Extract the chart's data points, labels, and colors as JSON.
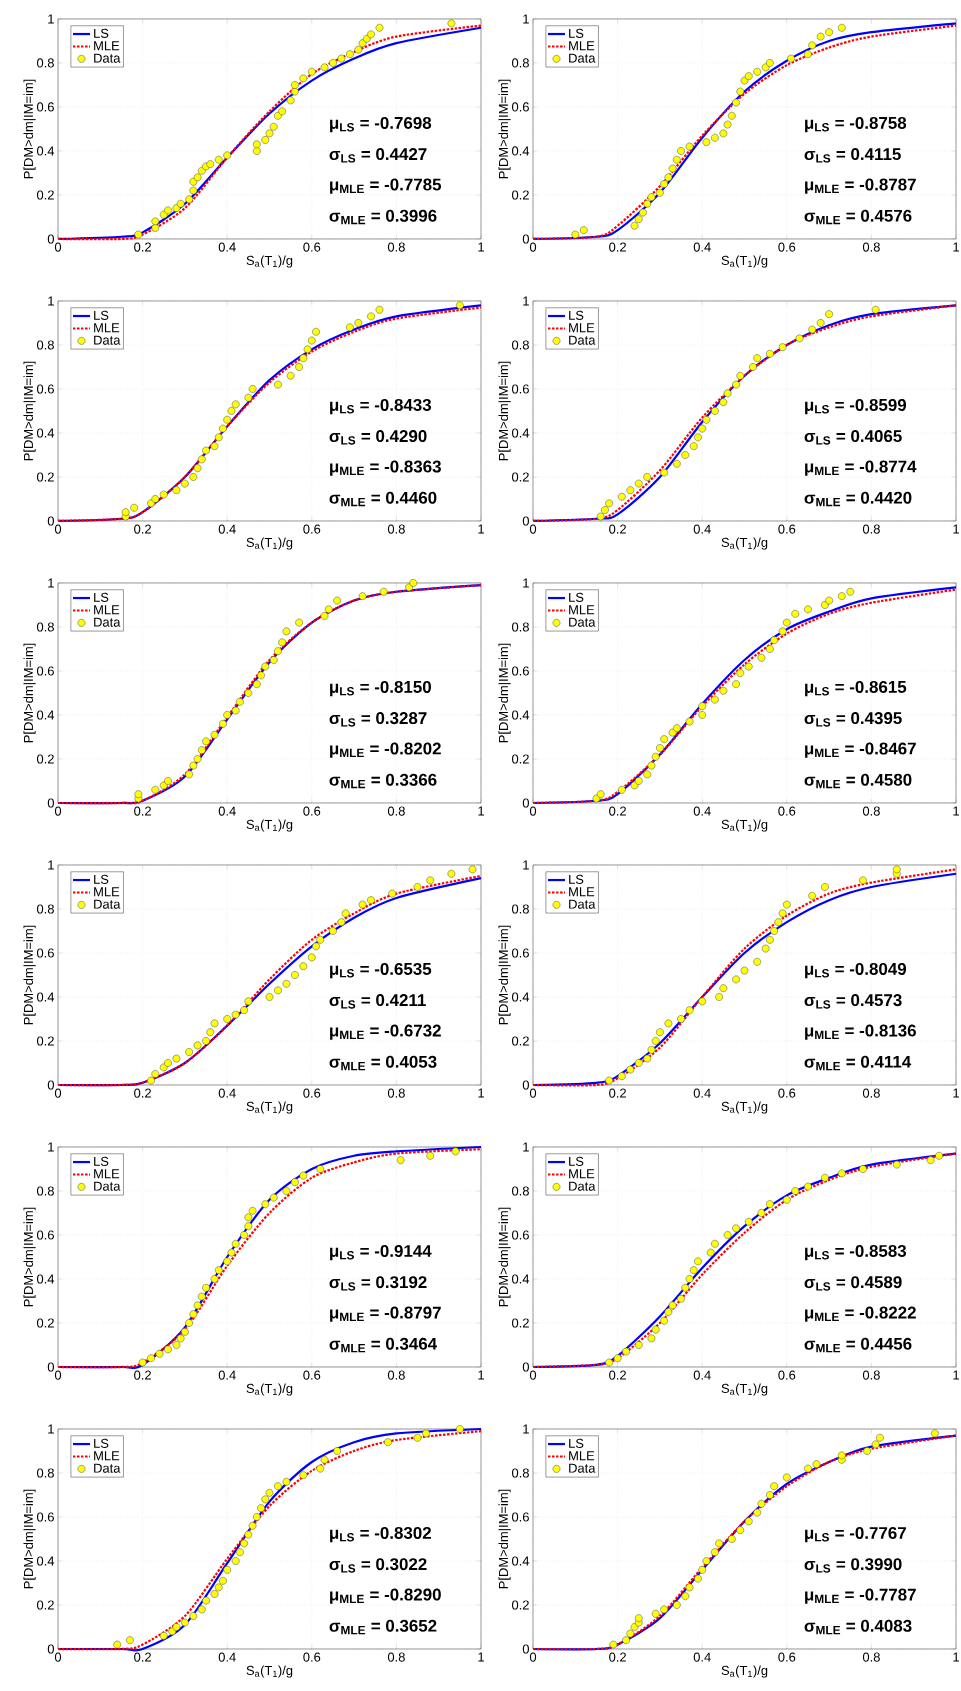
{
  "chart_data": [
    {
      "type": "line",
      "xlabel": "S$_{a}$(T$_{1}$)/g",
      "ylabel": "P[DM>dm|IM=im]",
      "x": [
        0,
        0.15,
        0.2,
        0.3,
        0.4,
        0.5,
        0.6,
        0.7,
        0.8,
        1
      ],
      "xlim": [
        0,
        1
      ],
      "ylim": [
        0,
        1
      ],
      "xticks": [
        0,
        0.2,
        0.4,
        0.6,
        0.8,
        1
      ],
      "yticks": [
        0,
        0.2,
        0.4,
        0.6,
        0.8,
        1
      ],
      "grid": true,
      "legend": "top left",
      "annotations": [
        "μ$_{LS}$ = -0.7698",
        "σ$_{LS}$ = 0.4427",
        "μ$_{MLE}$ = -0.7785",
        "σ$_{MLE}$ = 0.3996"
      ],
      "series": [
        {
          "name": "LS",
          "type": "line",
          "color": "#0000ff",
          "line_style": "solid",
          "values": [
            0,
            0.01,
            0.03,
            0.16,
            0.37,
            0.57,
            0.72,
            0.82,
            0.89,
            0.96
          ]
        },
        {
          "name": "MLE",
          "type": "line",
          "color": "#ff0000",
          "line_style": "dotted",
          "values": [
            0,
            0,
            0.02,
            0.14,
            0.37,
            0.58,
            0.75,
            0.85,
            0.92,
            0.97
          ]
        },
        {
          "name": "Data",
          "type": "scatter",
          "color": "#ffff00",
          "marker": "circle",
          "x": [
            0.19,
            0.23,
            0.23,
            0.25,
            0.26,
            0.28,
            0.29,
            0.31,
            0.32,
            0.32,
            0.33,
            0.34,
            0.35,
            0.36,
            0.38,
            0.4,
            0.47,
            0.47,
            0.49,
            0.5,
            0.51,
            0.52,
            0.53,
            0.55,
            0.56,
            0.56,
            0.58,
            0.6,
            0.63,
            0.65,
            0.67,
            0.69,
            0.71,
            0.72,
            0.73,
            0.74,
            0.76,
            0.93
          ],
          "values": [
            0.02,
            0.05,
            0.08,
            0.11,
            0.13,
            0.14,
            0.16,
            0.18,
            0.22,
            0.26,
            0.28,
            0.31,
            0.33,
            0.34,
            0.36,
            0.38,
            0.4,
            0.43,
            0.45,
            0.48,
            0.51,
            0.56,
            0.58,
            0.63,
            0.67,
            0.7,
            0.73,
            0.76,
            0.78,
            0.8,
            0.82,
            0.84,
            0.86,
            0.89,
            0.91,
            0.93,
            0.96,
            0.98
          ]
        }
      ]
    },
    {
      "type": "line",
      "xlabel": "S$_{a}$(T$_{1}$)/g",
      "ylabel": "P[DM>dm|IM=im]",
      "x": [
        0,
        0.15,
        0.2,
        0.3,
        0.4,
        0.5,
        0.6,
        0.7,
        0.8,
        1
      ],
      "xlim": [
        0,
        1
      ],
      "ylim": [
        0,
        1
      ],
      "xticks": [
        0,
        0.2,
        0.4,
        0.6,
        0.8,
        1
      ],
      "yticks": [
        0,
        0.2,
        0.4,
        0.6,
        0.8,
        1
      ],
      "grid": true,
      "legend": "top left",
      "annotations": [
        "μ$_{LS}$ = -0.8758",
        "σ$_{LS}$ = 0.4115",
        "μ$_{MLE}$ = -0.8787",
        "σ$_{MLE}$ = 0.4576"
      ],
      "series": [
        {
          "name": "LS",
          "type": "line",
          "color": "#0000ff",
          "line_style": "solid",
          "values": [
            0,
            0.01,
            0.04,
            0.21,
            0.46,
            0.67,
            0.81,
            0.9,
            0.94,
            0.98
          ]
        },
        {
          "name": "MLE",
          "type": "line",
          "color": "#ff0000",
          "line_style": "dotted",
          "values": [
            0,
            0.01,
            0.06,
            0.24,
            0.47,
            0.66,
            0.79,
            0.87,
            0.92,
            0.97
          ]
        },
        {
          "name": "Data",
          "type": "scatter",
          "color": "#ffff00",
          "marker": "circle",
          "x": [
            0.1,
            0.12,
            0.24,
            0.25,
            0.26,
            0.27,
            0.28,
            0.3,
            0.31,
            0.32,
            0.33,
            0.34,
            0.35,
            0.37,
            0.41,
            0.43,
            0.45,
            0.46,
            0.47,
            0.48,
            0.49,
            0.5,
            0.51,
            0.53,
            0.55,
            0.56,
            0.61,
            0.65,
            0.66,
            0.68,
            0.7,
            0.73
          ],
          "values": [
            0.02,
            0.04,
            0.06,
            0.09,
            0.12,
            0.16,
            0.19,
            0.21,
            0.25,
            0.28,
            0.32,
            0.36,
            0.4,
            0.42,
            0.44,
            0.46,
            0.48,
            0.52,
            0.56,
            0.62,
            0.67,
            0.72,
            0.74,
            0.76,
            0.78,
            0.8,
            0.82,
            0.84,
            0.88,
            0.92,
            0.94,
            0.96
          ]
        }
      ]
    },
    {
      "type": "line",
      "xlabel": "S$_{a}$(T$_{1}$)/g",
      "ylabel": "P[DM>dm|IM=im]",
      "x": [
        0,
        0.15,
        0.2,
        0.3,
        0.4,
        0.5,
        0.6,
        0.7,
        0.8,
        1
      ],
      "xlim": [
        0,
        1
      ],
      "ylim": [
        0,
        1
      ],
      "xticks": [
        0,
        0.2,
        0.4,
        0.6,
        0.8,
        1
      ],
      "yticks": [
        0,
        0.2,
        0.4,
        0.6,
        0.8,
        1
      ],
      "grid": true,
      "legend": "top left",
      "annotations": [
        "μ$_{LS}$ = -0.8433",
        "σ$_{LS}$ = 0.4290",
        "μ$_{MLE}$ = -0.8363",
        "σ$_{MLE}$ = 0.4460"
      ],
      "series": [
        {
          "name": "LS",
          "type": "line",
          "color": "#0000ff",
          "line_style": "solid",
          "values": [
            0,
            0.01,
            0.04,
            0.2,
            0.43,
            0.64,
            0.78,
            0.87,
            0.93,
            0.98
          ]
        },
        {
          "name": "MLE",
          "type": "line",
          "color": "#ff0000",
          "line_style": "dotted",
          "values": [
            0,
            0.01,
            0.04,
            0.2,
            0.43,
            0.63,
            0.77,
            0.86,
            0.92,
            0.97
          ]
        },
        {
          "name": "Data",
          "type": "scatter",
          "color": "#ffff00",
          "marker": "circle",
          "x": [
            0.16,
            0.16,
            0.18,
            0.22,
            0.23,
            0.25,
            0.28,
            0.3,
            0.32,
            0.33,
            0.34,
            0.35,
            0.37,
            0.38,
            0.39,
            0.4,
            0.41,
            0.42,
            0.45,
            0.46,
            0.52,
            0.55,
            0.57,
            0.58,
            0.59,
            0.6,
            0.61,
            0.69,
            0.71,
            0.74,
            0.76,
            0.95
          ],
          "values": [
            0.02,
            0.04,
            0.06,
            0.08,
            0.1,
            0.12,
            0.14,
            0.17,
            0.2,
            0.24,
            0.28,
            0.32,
            0.34,
            0.38,
            0.42,
            0.46,
            0.5,
            0.53,
            0.56,
            0.6,
            0.62,
            0.66,
            0.7,
            0.74,
            0.78,
            0.82,
            0.86,
            0.88,
            0.9,
            0.93,
            0.96,
            0.98
          ]
        }
      ]
    },
    {
      "type": "line",
      "xlabel": "S$_{a}$(T$_{1}$)/g",
      "ylabel": "P[DM>dm|IM=im]",
      "x": [
        0,
        0.15,
        0.2,
        0.3,
        0.4,
        0.5,
        0.6,
        0.7,
        0.8,
        1
      ],
      "xlim": [
        0,
        1
      ],
      "ylim": [
        0,
        1
      ],
      "xticks": [
        0,
        0.2,
        0.4,
        0.6,
        0.8,
        1
      ],
      "yticks": [
        0,
        0.2,
        0.4,
        0.6,
        0.8,
        1
      ],
      "grid": true,
      "legend": "top left",
      "annotations": [
        "μ$_{LS}$ = -0.8599",
        "σ$_{LS}$ = 0.4065",
        "μ$_{MLE}$ = -0.8774",
        "σ$_{MLE}$ = 0.4420"
      ],
      "series": [
        {
          "name": "LS",
          "type": "line",
          "color": "#0000ff",
          "line_style": "solid",
          "values": [
            0,
            0.01,
            0.03,
            0.2,
            0.45,
            0.66,
            0.8,
            0.89,
            0.94,
            0.98
          ]
        },
        {
          "name": "MLE",
          "type": "line",
          "color": "#ff0000",
          "line_style": "dotted",
          "values": [
            0,
            0.01,
            0.05,
            0.23,
            0.47,
            0.66,
            0.8,
            0.88,
            0.93,
            0.98
          ]
        },
        {
          "name": "Data",
          "type": "scatter",
          "color": "#ffff00",
          "marker": "circle",
          "x": [
            0.16,
            0.17,
            0.18,
            0.21,
            0.23,
            0.25,
            0.27,
            0.31,
            0.34,
            0.36,
            0.38,
            0.39,
            0.4,
            0.41,
            0.43,
            0.45,
            0.46,
            0.48,
            0.49,
            0.52,
            0.53,
            0.56,
            0.59,
            0.63,
            0.66,
            0.68,
            0.7,
            0.81
          ],
          "values": [
            0.02,
            0.05,
            0.08,
            0.11,
            0.14,
            0.17,
            0.2,
            0.22,
            0.26,
            0.3,
            0.34,
            0.38,
            0.42,
            0.46,
            0.5,
            0.54,
            0.58,
            0.62,
            0.66,
            0.7,
            0.74,
            0.76,
            0.79,
            0.83,
            0.87,
            0.9,
            0.94,
            0.96
          ]
        }
      ]
    },
    {
      "type": "line",
      "xlabel": "S$_{a}$(T$_{1}$)/g",
      "ylabel": "P[DM>dm|IM=im]",
      "x": [
        0,
        0.15,
        0.2,
        0.3,
        0.4,
        0.5,
        0.6,
        0.7,
        0.8,
        1
      ],
      "xlim": [
        0,
        1
      ],
      "ylim": [
        0,
        1
      ],
      "xticks": [
        0,
        0.2,
        0.4,
        0.6,
        0.8,
        1
      ],
      "yticks": [
        0,
        0.2,
        0.4,
        0.6,
        0.8,
        1
      ],
      "grid": true,
      "legend": "top left",
      "annotations": [
        "μ$_{LS}$ = -0.8150",
        "σ$_{LS}$ = 0.3287",
        "μ$_{MLE}$ = -0.8202",
        "σ$_{MLE}$ = 0.3366"
      ],
      "series": [
        {
          "name": "LS",
          "type": "line",
          "color": "#0000ff",
          "line_style": "solid",
          "values": [
            0,
            0,
            0.01,
            0.12,
            0.38,
            0.64,
            0.82,
            0.92,
            0.96,
            0.99
          ]
        },
        {
          "name": "MLE",
          "type": "line",
          "color": "#ff0000",
          "line_style": "dotted",
          "values": [
            0,
            0,
            0.01,
            0.13,
            0.39,
            0.65,
            0.82,
            0.92,
            0.96,
            0.99
          ]
        },
        {
          "name": "Data",
          "type": "scatter",
          "color": "#ffff00",
          "marker": "circle",
          "x": [
            0.19,
            0.19,
            0.23,
            0.25,
            0.26,
            0.31,
            0.32,
            0.33,
            0.34,
            0.35,
            0.37,
            0.39,
            0.4,
            0.42,
            0.43,
            0.45,
            0.47,
            0.48,
            0.49,
            0.51,
            0.52,
            0.53,
            0.54,
            0.57,
            0.63,
            0.64,
            0.66,
            0.72,
            0.77,
            0.83,
            0.84
          ],
          "values": [
            0.02,
            0.04,
            0.06,
            0.08,
            0.1,
            0.13,
            0.17,
            0.2,
            0.24,
            0.28,
            0.31,
            0.36,
            0.4,
            0.42,
            0.46,
            0.5,
            0.54,
            0.58,
            0.62,
            0.65,
            0.69,
            0.73,
            0.78,
            0.82,
            0.85,
            0.88,
            0.92,
            0.94,
            0.96,
            0.98,
            1.0
          ]
        }
      ]
    },
    {
      "type": "line",
      "xlabel": "S$_{a}$(T$_{1}$)/g",
      "ylabel": "P[DM>dm|IM=im]",
      "x": [
        0,
        0.15,
        0.2,
        0.3,
        0.4,
        0.5,
        0.6,
        0.7,
        0.8,
        1
      ],
      "xlim": [
        0,
        1
      ],
      "ylim": [
        0,
        1
      ],
      "xticks": [
        0,
        0.2,
        0.4,
        0.6,
        0.8,
        1
      ],
      "yticks": [
        0,
        0.2,
        0.4,
        0.6,
        0.8,
        1
      ],
      "grid": true,
      "legend": "top left",
      "annotations": [
        "μ$_{LS}$ = -0.8615",
        "σ$_{LS}$ = 0.4395",
        "μ$_{MLE}$ = -0.8467",
        "σ$_{MLE}$ = 0.4580"
      ],
      "series": [
        {
          "name": "LS",
          "type": "line",
          "color": "#0000ff",
          "line_style": "solid",
          "values": [
            0,
            0.01,
            0.04,
            0.22,
            0.45,
            0.65,
            0.79,
            0.87,
            0.93,
            0.98
          ]
        },
        {
          "name": "MLE",
          "type": "line",
          "color": "#ff0000",
          "line_style": "dotted",
          "values": [
            0,
            0.01,
            0.05,
            0.22,
            0.44,
            0.63,
            0.77,
            0.86,
            0.91,
            0.97
          ]
        },
        {
          "name": "Data",
          "type": "scatter",
          "color": "#ffff00",
          "marker": "circle",
          "x": [
            0.15,
            0.16,
            0.21,
            0.24,
            0.25,
            0.27,
            0.28,
            0.29,
            0.3,
            0.31,
            0.33,
            0.34,
            0.37,
            0.4,
            0.4,
            0.43,
            0.45,
            0.48,
            0.49,
            0.51,
            0.54,
            0.56,
            0.57,
            0.59,
            0.6,
            0.62,
            0.65,
            0.69,
            0.7,
            0.73,
            0.75
          ],
          "values": [
            0.02,
            0.04,
            0.06,
            0.08,
            0.1,
            0.13,
            0.17,
            0.21,
            0.25,
            0.29,
            0.32,
            0.34,
            0.37,
            0.4,
            0.44,
            0.47,
            0.51,
            0.54,
            0.59,
            0.62,
            0.66,
            0.7,
            0.74,
            0.78,
            0.82,
            0.86,
            0.88,
            0.9,
            0.92,
            0.94,
            0.96
          ]
        }
      ]
    },
    {
      "type": "line",
      "xlabel": "S$_{a}$(T$_{1}$)/g",
      "ylabel": "P[DM>dm|IM=im]",
      "x": [
        0,
        0.15,
        0.2,
        0.3,
        0.4,
        0.5,
        0.6,
        0.7,
        0.8,
        1
      ],
      "xlim": [
        0,
        1
      ],
      "ylim": [
        0,
        1
      ],
      "xticks": [
        0,
        0.2,
        0.4,
        0.6,
        0.8,
        1
      ],
      "yticks": [
        0,
        0.2,
        0.4,
        0.6,
        0.8,
        1
      ],
      "grid": true,
      "legend": "top left",
      "annotations": [
        "μ$_{LS}$ = -0.6535",
        "σ$_{LS}$ = 0.4211",
        "μ$_{MLE}$ = -0.6732",
        "σ$_{MLE}$ = 0.4053"
      ],
      "series": [
        {
          "name": "LS",
          "type": "line",
          "color": "#0000ff",
          "line_style": "solid",
          "values": [
            0,
            0,
            0.01,
            0.1,
            0.27,
            0.46,
            0.63,
            0.76,
            0.85,
            0.94
          ]
        },
        {
          "name": "MLE",
          "type": "line",
          "color": "#ff0000",
          "line_style": "dotted",
          "values": [
            0,
            0,
            0.01,
            0.1,
            0.27,
            0.48,
            0.66,
            0.78,
            0.87,
            0.95
          ]
        },
        {
          "name": "Data",
          "type": "scatter",
          "color": "#ffff00",
          "marker": "circle",
          "x": [
            0.22,
            0.23,
            0.25,
            0.26,
            0.28,
            0.31,
            0.33,
            0.35,
            0.36,
            0.37,
            0.4,
            0.42,
            0.44,
            0.45,
            0.5,
            0.52,
            0.54,
            0.56,
            0.58,
            0.6,
            0.61,
            0.62,
            0.65,
            0.67,
            0.68,
            0.72,
            0.74,
            0.79,
            0.85,
            0.88,
            0.93,
            0.98
          ],
          "values": [
            0.02,
            0.05,
            0.08,
            0.1,
            0.12,
            0.15,
            0.18,
            0.2,
            0.24,
            0.28,
            0.3,
            0.32,
            0.34,
            0.38,
            0.4,
            0.43,
            0.46,
            0.5,
            0.54,
            0.58,
            0.63,
            0.66,
            0.7,
            0.74,
            0.78,
            0.82,
            0.84,
            0.87,
            0.9,
            0.93,
            0.96,
            0.98
          ]
        }
      ]
    },
    {
      "type": "line",
      "xlabel": "S$_{a}$(T$_{1}$)/g",
      "ylabel": "P[DM>dm|IM=im]",
      "x": [
        0,
        0.15,
        0.2,
        0.3,
        0.4,
        0.5,
        0.6,
        0.7,
        0.8,
        1
      ],
      "xlim": [
        0,
        1
      ],
      "ylim": [
        0,
        1
      ],
      "xticks": [
        0,
        0.2,
        0.4,
        0.6,
        0.8,
        1
      ],
      "yticks": [
        0,
        0.2,
        0.4,
        0.6,
        0.8,
        1
      ],
      "grid": true,
      "legend": "top left",
      "annotations": [
        "μ$_{LS}$ = -0.8049",
        "σ$_{LS}$ = 0.4573",
        "μ$_{MLE}$ = -0.8136",
        "σ$_{MLE}$ = 0.4114"
      ],
      "series": [
        {
          "name": "LS",
          "type": "line",
          "color": "#0000ff",
          "line_style": "solid",
          "values": [
            0,
            0.01,
            0.04,
            0.19,
            0.4,
            0.6,
            0.74,
            0.84,
            0.9,
            0.96
          ]
        },
        {
          "name": "MLE",
          "type": "line",
          "color": "#ff0000",
          "line_style": "dotted",
          "values": [
            0,
            0,
            0.03,
            0.17,
            0.4,
            0.62,
            0.77,
            0.87,
            0.92,
            0.98
          ]
        },
        {
          "name": "Data",
          "type": "scatter",
          "color": "#ffff00",
          "marker": "circle",
          "x": [
            0.18,
            0.21,
            0.23,
            0.25,
            0.27,
            0.28,
            0.29,
            0.3,
            0.32,
            0.35,
            0.37,
            0.4,
            0.44,
            0.45,
            0.48,
            0.5,
            0.53,
            0.55,
            0.56,
            0.57,
            0.58,
            0.59,
            0.6,
            0.66,
            0.69,
            0.78,
            0.86,
            0.86
          ],
          "values": [
            0.02,
            0.04,
            0.07,
            0.1,
            0.12,
            0.16,
            0.2,
            0.24,
            0.28,
            0.3,
            0.34,
            0.38,
            0.4,
            0.44,
            0.48,
            0.52,
            0.56,
            0.62,
            0.66,
            0.7,
            0.74,
            0.78,
            0.82,
            0.86,
            0.9,
            0.93,
            0.96,
            0.98
          ]
        }
      ]
    },
    {
      "type": "line",
      "xlabel": "S$_{a}$(T$_{1}$)/g",
      "ylabel": "P[DM>dm|IM=im]",
      "x": [
        0,
        0.15,
        0.2,
        0.3,
        0.4,
        0.5,
        0.6,
        0.7,
        0.8,
        1
      ],
      "xlim": [
        0,
        1
      ],
      "ylim": [
        0,
        1
      ],
      "xticks": [
        0,
        0.2,
        0.4,
        0.6,
        0.8,
        1
      ],
      "yticks": [
        0,
        0.2,
        0.4,
        0.6,
        0.8,
        1
      ],
      "grid": true,
      "legend": "top left",
      "annotations": [
        "μ$_{LS}$ = -0.9144",
        "σ$_{LS}$ = 0.3192",
        "μ$_{MLE}$ = -0.8797",
        "σ$_{MLE}$ = 0.3464"
      ],
      "series": [
        {
          "name": "LS",
          "type": "line",
          "color": "#0000ff",
          "line_style": "solid",
          "values": [
            0,
            0,
            0.01,
            0.18,
            0.5,
            0.76,
            0.9,
            0.96,
            0.98,
            1.0
          ]
        },
        {
          "name": "MLE",
          "type": "line",
          "color": "#ff0000",
          "line_style": "dotted",
          "values": [
            0,
            0,
            0.02,
            0.17,
            0.46,
            0.7,
            0.86,
            0.93,
            0.97,
            0.99
          ]
        },
        {
          "name": "Data",
          "type": "scatter",
          "color": "#ffff00",
          "marker": "circle",
          "x": [
            0.2,
            0.22,
            0.24,
            0.26,
            0.28,
            0.29,
            0.3,
            0.31,
            0.32,
            0.33,
            0.34,
            0.35,
            0.37,
            0.38,
            0.4,
            0.41,
            0.42,
            0.44,
            0.45,
            0.45,
            0.46,
            0.49,
            0.51,
            0.54,
            0.56,
            0.58,
            0.62,
            0.81,
            0.88,
            0.94
          ],
          "values": [
            0.02,
            0.04,
            0.06,
            0.08,
            0.1,
            0.13,
            0.16,
            0.2,
            0.24,
            0.28,
            0.32,
            0.36,
            0.4,
            0.44,
            0.48,
            0.52,
            0.56,
            0.6,
            0.64,
            0.68,
            0.71,
            0.74,
            0.77,
            0.8,
            0.84,
            0.87,
            0.9,
            0.94,
            0.96,
            0.98
          ]
        }
      ]
    },
    {
      "type": "line",
      "xlabel": "S$_{a}$(T$_{1}$)/g",
      "ylabel": "P[DM>dm|IM=im]",
      "x": [
        0,
        0.15,
        0.2,
        0.3,
        0.4,
        0.5,
        0.6,
        0.7,
        0.8,
        1
      ],
      "xlim": [
        0,
        1
      ],
      "ylim": [
        0,
        1
      ],
      "xticks": [
        0,
        0.2,
        0.4,
        0.6,
        0.8,
        1
      ],
      "yticks": [
        0,
        0.2,
        0.4,
        0.6,
        0.8,
        1
      ],
      "grid": true,
      "legend": "top left",
      "annotations": [
        "μ$_{LS}$ = -0.8583",
        "σ$_{LS}$ = 0.4589",
        "μ$_{MLE}$ = -0.8222",
        "σ$_{MLE}$ = 0.4456"
      ],
      "series": [
        {
          "name": "LS",
          "type": "line",
          "color": "#0000ff",
          "line_style": "solid",
          "values": [
            0,
            0.01,
            0.05,
            0.23,
            0.45,
            0.64,
            0.78,
            0.86,
            0.92,
            0.97
          ]
        },
        {
          "name": "MLE",
          "type": "line",
          "color": "#ff0000",
          "line_style": "dotted",
          "values": [
            0,
            0.01,
            0.04,
            0.2,
            0.42,
            0.61,
            0.76,
            0.85,
            0.91,
            0.97
          ]
        },
        {
          "name": "Data",
          "type": "scatter",
          "color": "#ffff00",
          "marker": "circle",
          "x": [
            0.18,
            0.2,
            0.22,
            0.25,
            0.28,
            0.29,
            0.31,
            0.32,
            0.33,
            0.35,
            0.36,
            0.37,
            0.38,
            0.39,
            0.42,
            0.43,
            0.46,
            0.48,
            0.51,
            0.54,
            0.56,
            0.6,
            0.62,
            0.65,
            0.69,
            0.73,
            0.78,
            0.86,
            0.94,
            0.96
          ],
          "values": [
            0.02,
            0.04,
            0.07,
            0.1,
            0.13,
            0.17,
            0.21,
            0.25,
            0.28,
            0.31,
            0.36,
            0.4,
            0.44,
            0.48,
            0.52,
            0.56,
            0.6,
            0.63,
            0.66,
            0.7,
            0.74,
            0.76,
            0.8,
            0.82,
            0.86,
            0.88,
            0.9,
            0.92,
            0.94,
            0.96
          ]
        }
      ]
    },
    {
      "type": "line",
      "xlabel": "S$_{a}$(T$_{1}$)/g",
      "ylabel": "P[DM>dm|IM=im]",
      "x": [
        0,
        0.15,
        0.2,
        0.3,
        0.4,
        0.5,
        0.6,
        0.7,
        0.8,
        1
      ],
      "xlim": [
        0,
        1
      ],
      "ylim": [
        0,
        1
      ],
      "xticks": [
        0,
        0.2,
        0.4,
        0.6,
        0.8,
        1
      ],
      "yticks": [
        0,
        0.2,
        0.4,
        0.6,
        0.8,
        1
      ],
      "grid": true,
      "legend": "top left",
      "annotations": [
        "μ$_{LS}$ = -0.8302",
        "σ$_{LS}$ = 0.3022",
        "μ$_{MLE}$ = -0.8290",
        "σ$_{MLE}$ = 0.3652"
      ],
      "series": [
        {
          "name": "LS",
          "type": "line",
          "color": "#0000ff",
          "line_style": "solid",
          "values": [
            0,
            0,
            0,
            0.11,
            0.39,
            0.67,
            0.85,
            0.94,
            0.98,
            1.0
          ]
        },
        {
          "name": "MLE",
          "type": "line",
          "color": "#ff0000",
          "line_style": "dotted",
          "values": [
            0,
            0,
            0.02,
            0.15,
            0.41,
            0.65,
            0.81,
            0.9,
            0.95,
            0.99
          ]
        },
        {
          "name": "Data",
          "type": "scatter",
          "color": "#ffff00",
          "marker": "circle",
          "x": [
            0.14,
            0.17,
            0.25,
            0.27,
            0.28,
            0.3,
            0.32,
            0.34,
            0.35,
            0.37,
            0.38,
            0.39,
            0.4,
            0.42,
            0.43,
            0.44,
            0.45,
            0.46,
            0.47,
            0.48,
            0.49,
            0.5,
            0.52,
            0.54,
            0.58,
            0.62,
            0.63,
            0.66,
            0.78,
            0.85,
            0.87,
            0.95
          ],
          "values": [
            0.02,
            0.04,
            0.06,
            0.08,
            0.1,
            0.12,
            0.15,
            0.18,
            0.22,
            0.25,
            0.28,
            0.31,
            0.36,
            0.4,
            0.44,
            0.48,
            0.52,
            0.56,
            0.6,
            0.64,
            0.68,
            0.71,
            0.74,
            0.76,
            0.79,
            0.82,
            0.86,
            0.9,
            0.94,
            0.96,
            0.98,
            1.0
          ]
        }
      ]
    },
    {
      "type": "line",
      "xlabel": "S$_{a}$(T$_{1}$)/g",
      "ylabel": "P[DM>dm|IM=im]",
      "x": [
        0,
        0.15,
        0.2,
        0.3,
        0.4,
        0.5,
        0.6,
        0.7,
        0.8,
        1
      ],
      "xlim": [
        0,
        1
      ],
      "ylim": [
        0,
        1
      ],
      "xticks": [
        0,
        0.2,
        0.4,
        0.6,
        0.8,
        1
      ],
      "yticks": [
        0,
        0.2,
        0.4,
        0.6,
        0.8,
        1
      ],
      "grid": true,
      "legend": "top left",
      "annotations": [
        "μ$_{LS}$ = -0.7767",
        "σ$_{LS}$ = 0.3990",
        "μ$_{MLE}$ = -0.7787",
        "σ$_{MLE}$ = 0.4083"
      ],
      "series": [
        {
          "name": "LS",
          "type": "line",
          "color": "#0000ff",
          "line_style": "solid",
          "values": [
            0,
            0,
            0.02,
            0.14,
            0.36,
            0.58,
            0.75,
            0.85,
            0.92,
            0.97
          ]
        },
        {
          "name": "MLE",
          "type": "line",
          "color": "#ff0000",
          "line_style": "dotted",
          "values": [
            0,
            0,
            0.02,
            0.15,
            0.37,
            0.58,
            0.74,
            0.85,
            0.91,
            0.97
          ]
        },
        {
          "name": "Data",
          "type": "scatter",
          "color": "#ffff00",
          "marker": "circle",
          "x": [
            0.19,
            0.22,
            0.23,
            0.24,
            0.25,
            0.25,
            0.29,
            0.31,
            0.34,
            0.36,
            0.37,
            0.39,
            0.4,
            0.41,
            0.43,
            0.44,
            0.47,
            0.49,
            0.51,
            0.53,
            0.54,
            0.56,
            0.57,
            0.6,
            0.65,
            0.67,
            0.73,
            0.73,
            0.79,
            0.81,
            0.82,
            0.95
          ],
          "values": [
            0.02,
            0.04,
            0.07,
            0.1,
            0.12,
            0.14,
            0.16,
            0.18,
            0.2,
            0.24,
            0.28,
            0.32,
            0.36,
            0.4,
            0.44,
            0.48,
            0.5,
            0.54,
            0.58,
            0.62,
            0.66,
            0.7,
            0.74,
            0.78,
            0.82,
            0.84,
            0.86,
            0.88,
            0.9,
            0.93,
            0.96,
            0.98
          ]
        }
      ]
    }
  ]
}
